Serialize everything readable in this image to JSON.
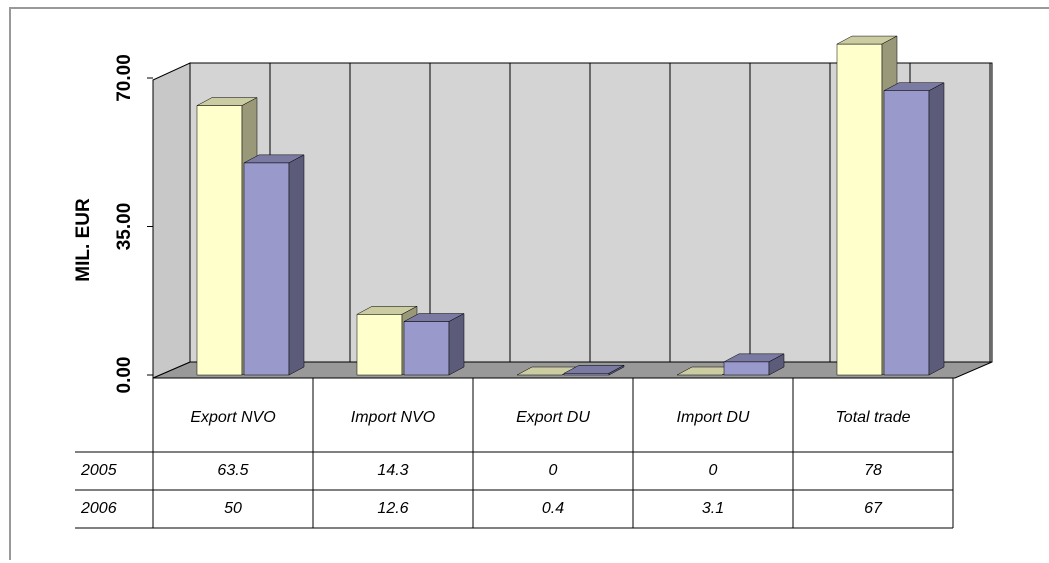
{
  "chart_data": {
    "type": "bar3d",
    "y_axis_label": "MIL. EUR",
    "categories": [
      "Export NVO",
      "Import NVO",
      "Export DU",
      "Import DU",
      "Total trade"
    ],
    "series": [
      {
        "name": "2005",
        "color": "#ffffcc",
        "values": [
          63.5,
          14.3,
          0,
          0,
          78
        ]
      },
      {
        "name": "2006",
        "color": "#9999cc",
        "values": [
          50,
          12.6,
          0.4,
          3.1,
          67
        ]
      }
    ],
    "ylim": [
      0,
      70
    ],
    "yticks": [
      {
        "value": 0,
        "label": "0.00"
      },
      {
        "value": 35,
        "label": "35.00"
      },
      {
        "value": 70,
        "label": "70.00"
      }
    ],
    "grid": true
  }
}
